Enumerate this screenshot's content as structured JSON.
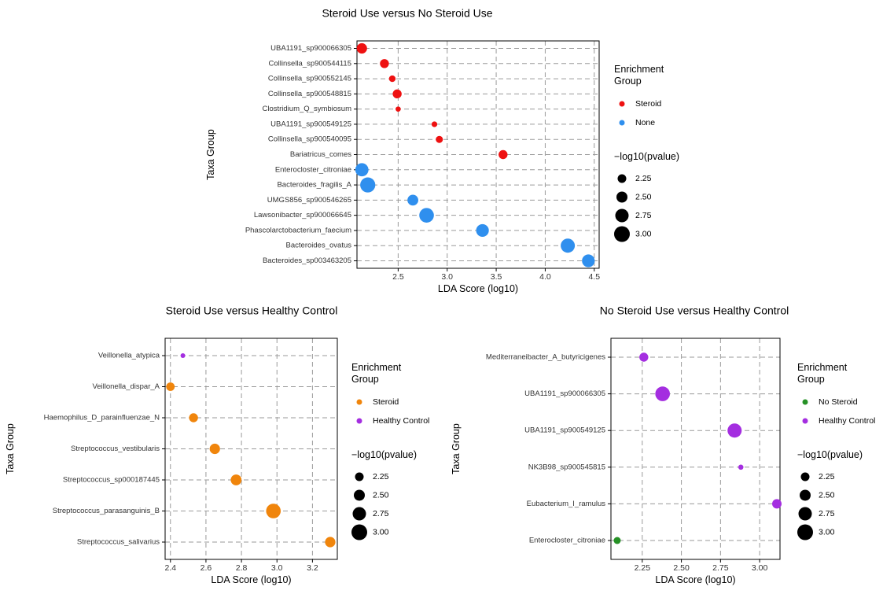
{
  "colors": {
    "steroid_top": "#ee1111",
    "none": "#2f8fee",
    "steroid_orange": "#f0850c",
    "healthy_control": "#a42ee0",
    "no_steroid": "#269126",
    "grid": "#9a9a9a",
    "legend_size": "#000000"
  },
  "chart_data": [
    {
      "type": "scatter",
      "title": "Steroid Use versus No Steroid Use",
      "xlabel": "LDA Score (log10)",
      "ylabel": "Taxa Group",
      "xlim": [
        2.08,
        4.55
      ],
      "xticks": [
        "2.5",
        "3.0",
        "3.5",
        "4.0",
        "4.5"
      ],
      "categories": [
        "UBA1191_sp900066305",
        "Collinsella_sp900544115",
        "Collinsella_sp900552145",
        "Collinsella_sp900548815",
        "Clostridium_Q_symbiosum",
        "UBA1191_sp900549125",
        "Collinsella_sp900540095",
        "Bariatricus_comes",
        "Enterocloster_citroniae",
        "Bacteroides_fragilis_A",
        "UMGS856_sp900546265",
        "Lawsonibacter_sp900066645",
        "Phascolarctobacterium_faecium",
        "Bacteroides_ovatus",
        "Bacteroides_sp003463205"
      ],
      "points": [
        {
          "taxon": "UBA1191_sp900066305",
          "lda": 2.13,
          "neglog10p": 2.6,
          "group": "Steroid"
        },
        {
          "taxon": "Collinsella_sp900544115",
          "lda": 2.36,
          "neglog10p": 2.45,
          "group": "Steroid"
        },
        {
          "taxon": "Collinsella_sp900552145",
          "lda": 2.44,
          "neglog10p": 2.2,
          "group": "Steroid"
        },
        {
          "taxon": "Collinsella_sp900548815",
          "lda": 2.49,
          "neglog10p": 2.45,
          "group": "Steroid"
        },
        {
          "taxon": "Clostridium_Q_symbiosum",
          "lda": 2.5,
          "neglog10p": 2.05,
          "group": "Steroid"
        },
        {
          "taxon": "UBA1191_sp900549125",
          "lda": 2.87,
          "neglog10p": 2.1,
          "group": "Steroid"
        },
        {
          "taxon": "Collinsella_sp900540095",
          "lda": 2.92,
          "neglog10p": 2.25,
          "group": "Steroid"
        },
        {
          "taxon": "Bariatricus_comes",
          "lda": 3.57,
          "neglog10p": 2.45,
          "group": "Steroid"
        },
        {
          "taxon": "Enterocloster_citroniae",
          "lda": 2.13,
          "neglog10p": 2.9,
          "group": "None"
        },
        {
          "taxon": "Bacteroides_fragilis_A",
          "lda": 2.19,
          "neglog10p": 3.1,
          "group": "None"
        },
        {
          "taxon": "UMGS856_sp900546265",
          "lda": 2.65,
          "neglog10p": 2.65,
          "group": "None"
        },
        {
          "taxon": "Lawsonibacter_sp900066645",
          "lda": 2.79,
          "neglog10p": 3.05,
          "group": "None"
        },
        {
          "taxon": "Phascolarctobacterium_faecium",
          "lda": 3.36,
          "neglog10p": 2.85,
          "group": "None"
        },
        {
          "taxon": "Bacteroides_ovatus",
          "lda": 4.23,
          "neglog10p": 3.0,
          "group": "None"
        },
        {
          "taxon": "Bacteroides_sp003463205",
          "lda": 4.44,
          "neglog10p": 2.85,
          "group": "None"
        }
      ],
      "legend": {
        "group_title": [
          "Enrichment",
          "Group"
        ],
        "groups": [
          {
            "name": "Steroid",
            "color": "#ee1111"
          },
          {
            "name": "None",
            "color": "#2f8fee"
          }
        ],
        "size_title": "−log10(pvalue)",
        "sizes": [
          {
            "label": "2.25",
            "value": 2.25
          },
          {
            "label": "2.50",
            "value": 2.5
          },
          {
            "label": "2.75",
            "value": 2.75
          },
          {
            "label": "3.00",
            "value": 3.0
          }
        ]
      }
    },
    {
      "type": "scatter",
      "title": "Steroid Use versus Healthy Control",
      "xlabel": "LDA Score (log10)",
      "ylabel": "Taxa Group",
      "xlim": [
        2.37,
        3.34
      ],
      "xticks": [
        "2.4",
        "2.6",
        "2.8",
        "3.0",
        "3.2"
      ],
      "categories": [
        "Veillonella_atypica",
        "Veillonella_dispar_A",
        "Haemophilus_D_parainfluenzae_N",
        "Streptococcus_vestibularis",
        "Streptococcus_sp000187445",
        "Streptococcus_parasanguinis_B",
        "Streptococcus_salivarius"
      ],
      "points": [
        {
          "taxon": "Veillonella_atypica",
          "lda": 2.47,
          "neglog10p": 2.0,
          "group": "Healthy Control"
        },
        {
          "taxon": "Veillonella_dispar_A",
          "lda": 2.4,
          "neglog10p": 2.4,
          "group": "Steroid"
        },
        {
          "taxon": "Haemophilus_D_parainfluenzae_N",
          "lda": 2.53,
          "neglog10p": 2.45,
          "group": "Steroid"
        },
        {
          "taxon": "Streptococcus_vestibularis",
          "lda": 2.65,
          "neglog10p": 2.6,
          "group": "Steroid"
        },
        {
          "taxon": "Streptococcus_sp000187445",
          "lda": 2.77,
          "neglog10p": 2.65,
          "group": "Steroid"
        },
        {
          "taxon": "Streptococcus_parasanguinis_B",
          "lda": 2.98,
          "neglog10p": 3.05,
          "group": "Steroid"
        },
        {
          "taxon": "Streptococcus_salivarius",
          "lda": 3.3,
          "neglog10p": 2.6,
          "group": "Steroid"
        }
      ],
      "legend": {
        "group_title": [
          "Enrichment",
          "Group"
        ],
        "groups": [
          {
            "name": "Steroid",
            "color": "#f0850c"
          },
          {
            "name": "Healthy Control",
            "color": "#a42ee0"
          }
        ],
        "size_title": "−log10(pvalue)",
        "sizes": [
          {
            "label": "2.25",
            "value": 2.25
          },
          {
            "label": "2.50",
            "value": 2.5
          },
          {
            "label": "2.75",
            "value": 2.75
          },
          {
            "label": "3.00",
            "value": 3.0
          }
        ]
      }
    },
    {
      "type": "scatter",
      "title": "No Steroid Use versus Healthy Control",
      "xlabel": "LDA Score (log10)",
      "ylabel": "Taxa Group",
      "xlim": [
        2.05,
        3.13
      ],
      "xticks": [
        "2.25",
        "2.50",
        "2.75",
        "3.00"
      ],
      "categories": [
        "Mediterraneibacter_A_butyricigenes",
        "UBA1191_sp900066305",
        "UBA1191_sp900549125",
        "NK3B98_sp900545815",
        "Eubacterium_I_ramulus",
        "Enterocloster_citroniae"
      ],
      "points": [
        {
          "taxon": "Mediterraneibacter_A_butyricigenes",
          "lda": 2.26,
          "neglog10p": 2.45,
          "group": "Healthy Control"
        },
        {
          "taxon": "UBA1191_sp900066305",
          "lda": 2.38,
          "neglog10p": 3.05,
          "group": "Healthy Control"
        },
        {
          "taxon": "UBA1191_sp900549125",
          "lda": 2.84,
          "neglog10p": 3.0,
          "group": "Healthy Control"
        },
        {
          "taxon": "NK3B98_sp900545815",
          "lda": 2.88,
          "neglog10p": 2.05,
          "group": "Healthy Control"
        },
        {
          "taxon": "Eubacterium_I_ramulus",
          "lda": 3.11,
          "neglog10p": 2.5,
          "group": "Healthy Control"
        },
        {
          "taxon": "Enterocloster_citroniae",
          "lda": 2.09,
          "neglog10p": 2.25,
          "group": "No Steroid"
        }
      ],
      "legend": {
        "group_title": [
          "Enrichment",
          "Group"
        ],
        "groups": [
          {
            "name": "No Steroid",
            "color": "#269126"
          },
          {
            "name": "Healthy Control",
            "color": "#a42ee0"
          }
        ],
        "size_title": "−log10(pvalue)",
        "sizes": [
          {
            "label": "2.25",
            "value": 2.25
          },
          {
            "label": "2.50",
            "value": 2.5
          },
          {
            "label": "2.75",
            "value": 2.75
          },
          {
            "label": "3.00",
            "value": 3.0
          }
        ]
      }
    }
  ]
}
